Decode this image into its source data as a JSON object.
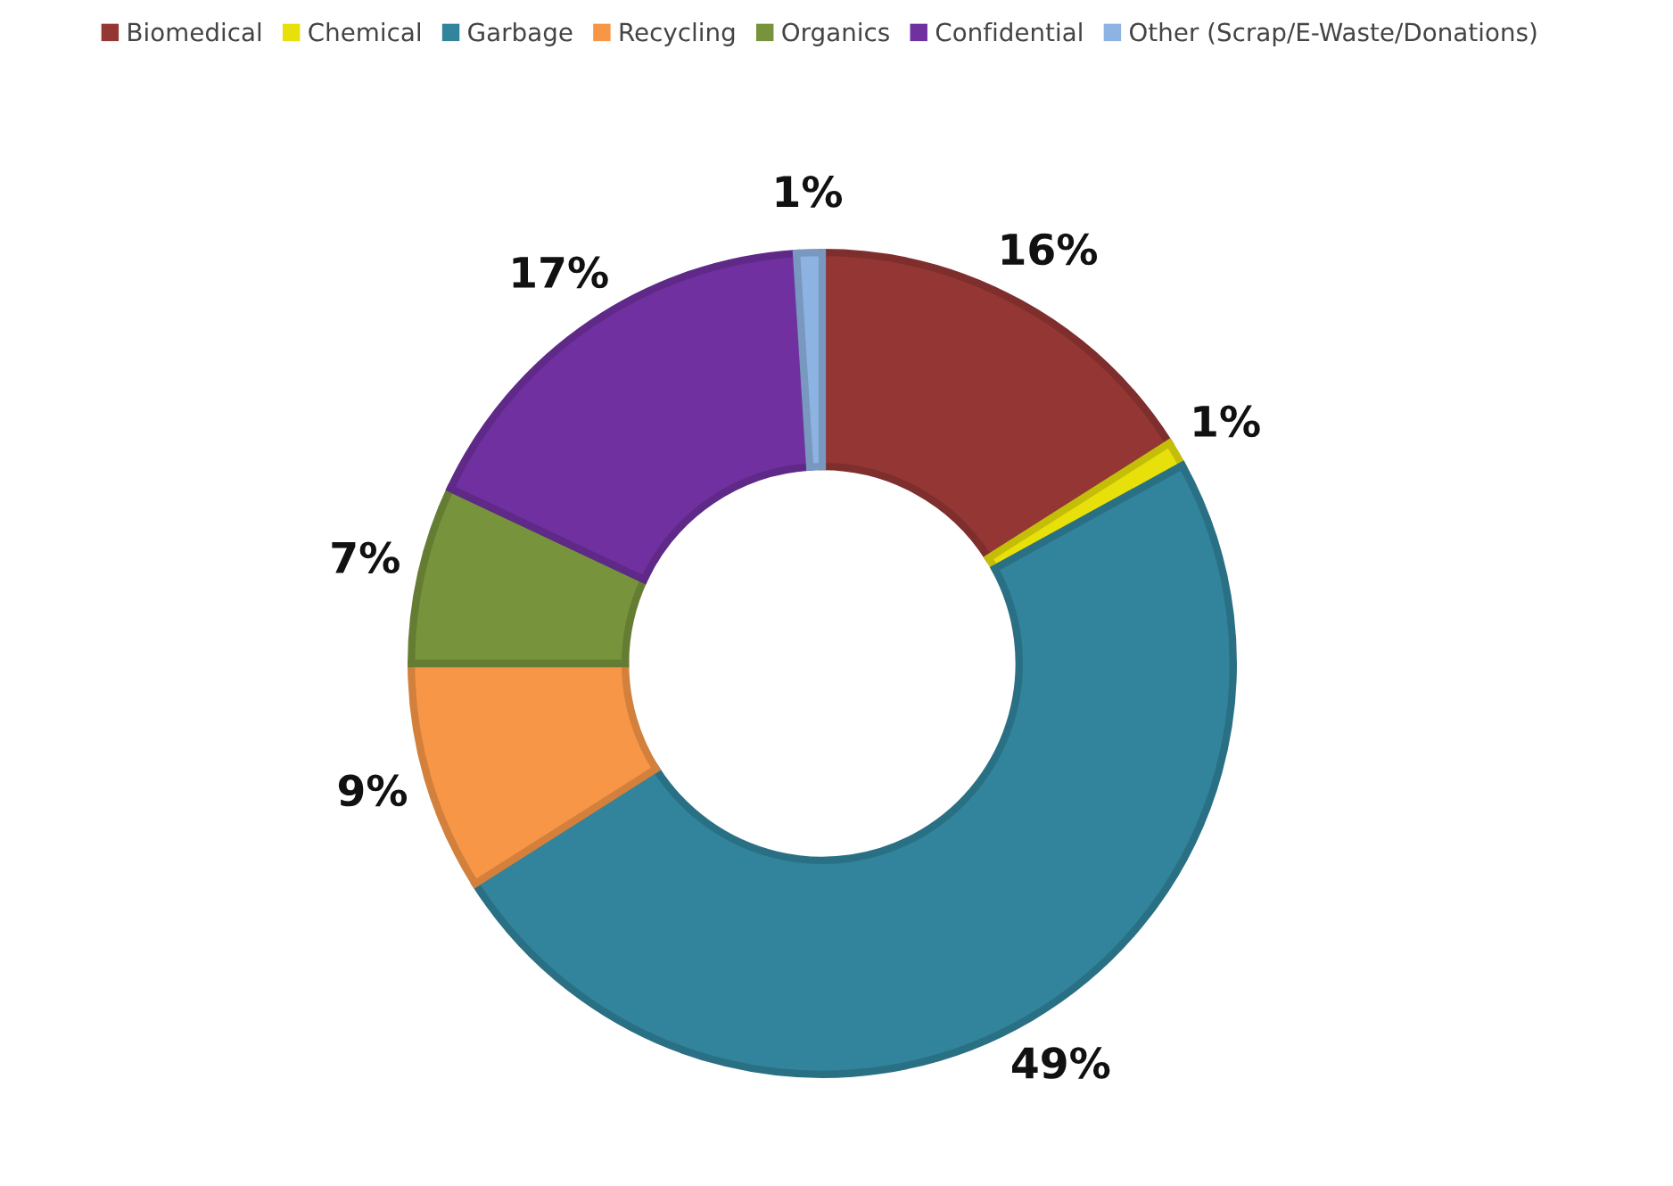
{
  "chart_data": {
    "type": "donut",
    "categories": [
      "Biomedical",
      "Chemical",
      "Garbage",
      "Recycling",
      "Organics",
      "Confidential",
      "Other (Scrap/E-Waste/Donations)"
    ],
    "values": [
      16,
      1,
      49,
      9,
      7,
      17,
      1
    ],
    "colors": [
      "#943634",
      "#e8e00a",
      "#31849b",
      "#f79646",
      "#77933c",
      "#7030a0",
      "#8db3e2"
    ],
    "value_labels": [
      "16%",
      "1%",
      "49%",
      "9%",
      "7%",
      "17%",
      "1%"
    ],
    "legend": "top"
  }
}
